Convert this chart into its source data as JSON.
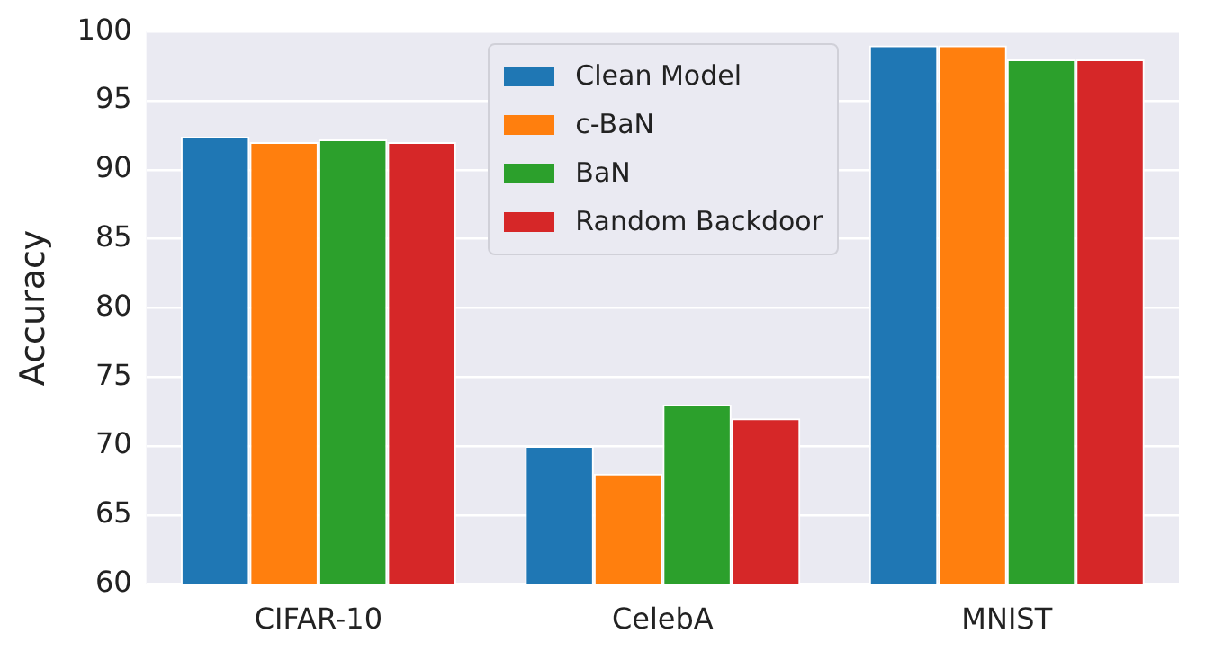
{
  "chart_data": {
    "type": "bar",
    "ylabel": "Accuracy",
    "categories": [
      "CIFAR-10",
      "CelebA",
      "MNIST"
    ],
    "series": [
      {
        "name": "Clean Model",
        "color": "#1f77b4",
        "values": [
          92.4,
          70,
          99
        ]
      },
      {
        "name": "c-BaN",
        "color": "#ff7f0e",
        "values": [
          92.0,
          68,
          99
        ]
      },
      {
        "name": "BaN",
        "color": "#2ca02c",
        "values": [
          92.2,
          73,
          98
        ]
      },
      {
        "name": "Random Backdoor",
        "color": "#d62728",
        "values": [
          92.0,
          72,
          98
        ]
      }
    ],
    "ylim": [
      60,
      100
    ],
    "yticks": [
      60,
      65,
      70,
      75,
      80,
      85,
      90,
      95,
      100
    ],
    "grid": "y",
    "legend": "top"
  }
}
